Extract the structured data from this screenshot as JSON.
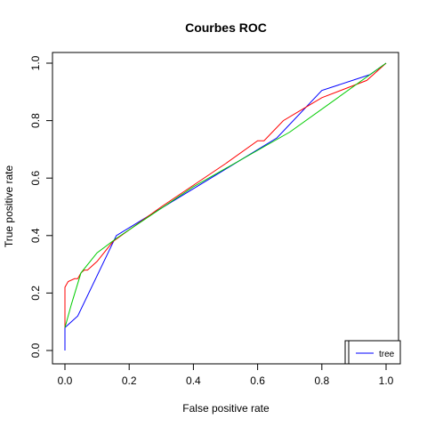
{
  "chart_data": {
    "type": "line",
    "title": "Courbes ROC",
    "xlabel": "False positive rate",
    "ylabel": "True positive rate",
    "xlim": [
      0,
      1
    ],
    "ylim": [
      0,
      1
    ],
    "x_ticks": [
      "0.0",
      "0.2",
      "0.4",
      "0.6",
      "0.8",
      "1.0"
    ],
    "y_ticks": [
      "0.0",
      "0.2",
      "0.4",
      "0.6",
      "0.8",
      "1.0"
    ],
    "grid": false,
    "legend_position": "bottom-right",
    "legend_entries": [
      {
        "label": "tree",
        "color": "#0000ff"
      }
    ],
    "series": [
      {
        "color": "#0000ff",
        "x": [
          0.0,
          0.0,
          0.04,
          0.16,
          0.66,
          0.8,
          0.95,
          1.0
        ],
        "y": [
          0.0,
          0.08,
          0.12,
          0.4,
          0.74,
          0.905,
          0.96,
          1.0
        ]
      },
      {
        "color": "#ff0000",
        "x": [
          0.0,
          0.0,
          0.01,
          0.03,
          0.04,
          0.05,
          0.06,
          0.07,
          0.1,
          0.15,
          0.3,
          0.5,
          0.6,
          0.62,
          0.68,
          0.8,
          0.94,
          1.0
        ],
        "y": [
          0.08,
          0.22,
          0.24,
          0.25,
          0.25,
          0.27,
          0.28,
          0.28,
          0.31,
          0.38,
          0.5,
          0.65,
          0.73,
          0.73,
          0.8,
          0.88,
          0.94,
          1.0
        ]
      },
      {
        "color": "#00cc00",
        "x": [
          0.0,
          0.02,
          0.05,
          0.1,
          0.16,
          0.4,
          0.7,
          1.0
        ],
        "y": [
          0.08,
          0.16,
          0.27,
          0.34,
          0.39,
          0.57,
          0.76,
          1.0
        ]
      }
    ]
  }
}
